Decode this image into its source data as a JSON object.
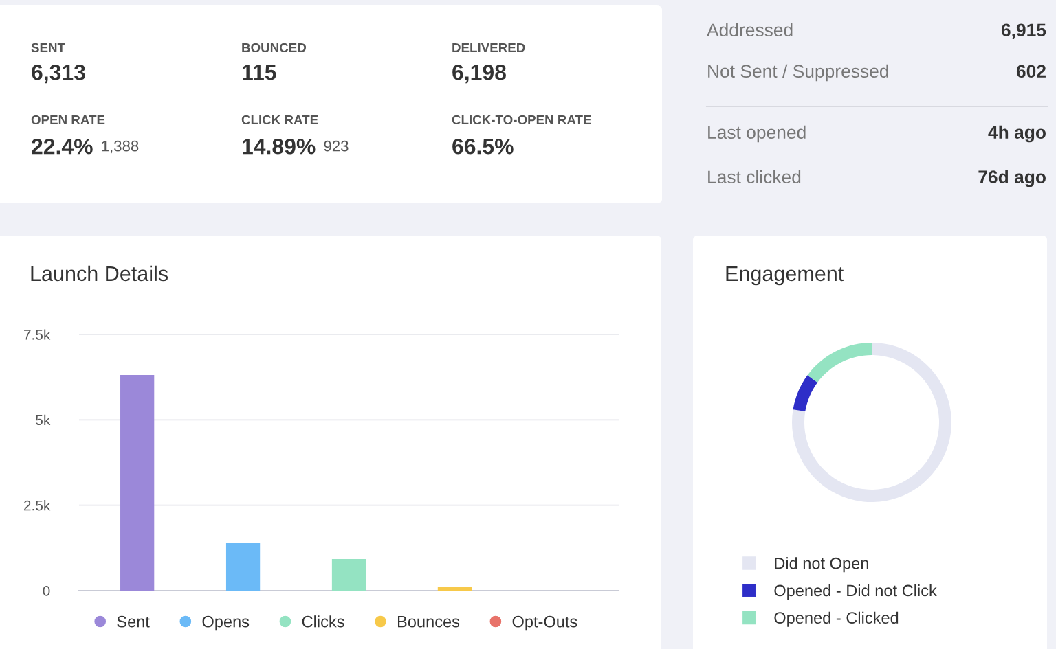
{
  "chart_data": [
    {
      "type": "other",
      "categories": [
        "SENT",
        "BOUNCED",
        "DELIVERED",
        "OPEN RATE",
        "CLICK RATE",
        "CLICK-TO-OPEN RATE"
      ],
      "value_labels": [
        "6,313",
        "115",
        "6,198",
        "22.4%",
        "14.89%",
        "66.5%"
      ],
      "annotations": [
        null,
        null,
        null,
        "1,388",
        "923",
        null
      ]
    },
    {
      "type": "other",
      "categories": [
        "Addressed",
        "Not Sent / Suppressed",
        "Last opened",
        "Last clicked"
      ],
      "value_labels": [
        "6,915",
        "602",
        "4h ago",
        "76d ago"
      ]
    },
    {
      "type": "bar",
      "title": "Launch Details",
      "categories": [
        "Sent",
        "Opens",
        "Clicks",
        "Bounces",
        "Opt-Outs"
      ],
      "values": [
        6313,
        1388,
        923,
        115,
        0
      ],
      "colors": [
        "#9b88d9",
        "#6bbaf7",
        "#94e3c2",
        "#f7c94a",
        "#e8736a"
      ],
      "ylim": [
        0,
        7500
      ],
      "yticks": [
        0,
        {
          "value": 2500,
          "label": "2.5k"
        },
        {
          "value": 5000,
          "label": "5k"
        },
        {
          "value": 7500,
          "label": "7.5k"
        }
      ],
      "grid": "y",
      "tick_labels": "y"
    },
    {
      "type": "donut",
      "title": "Engagement",
      "categories": [
        "Did not Open",
        "Opened - Did not Click",
        "Opened - Clicked"
      ],
      "values": [
        77.6,
        7.5,
        14.9
      ],
      "colors": [
        "#e4e6f2",
        "#2e2ec8",
        "#94e3c2"
      ],
      "legend": "bottom"
    }
  ]
}
